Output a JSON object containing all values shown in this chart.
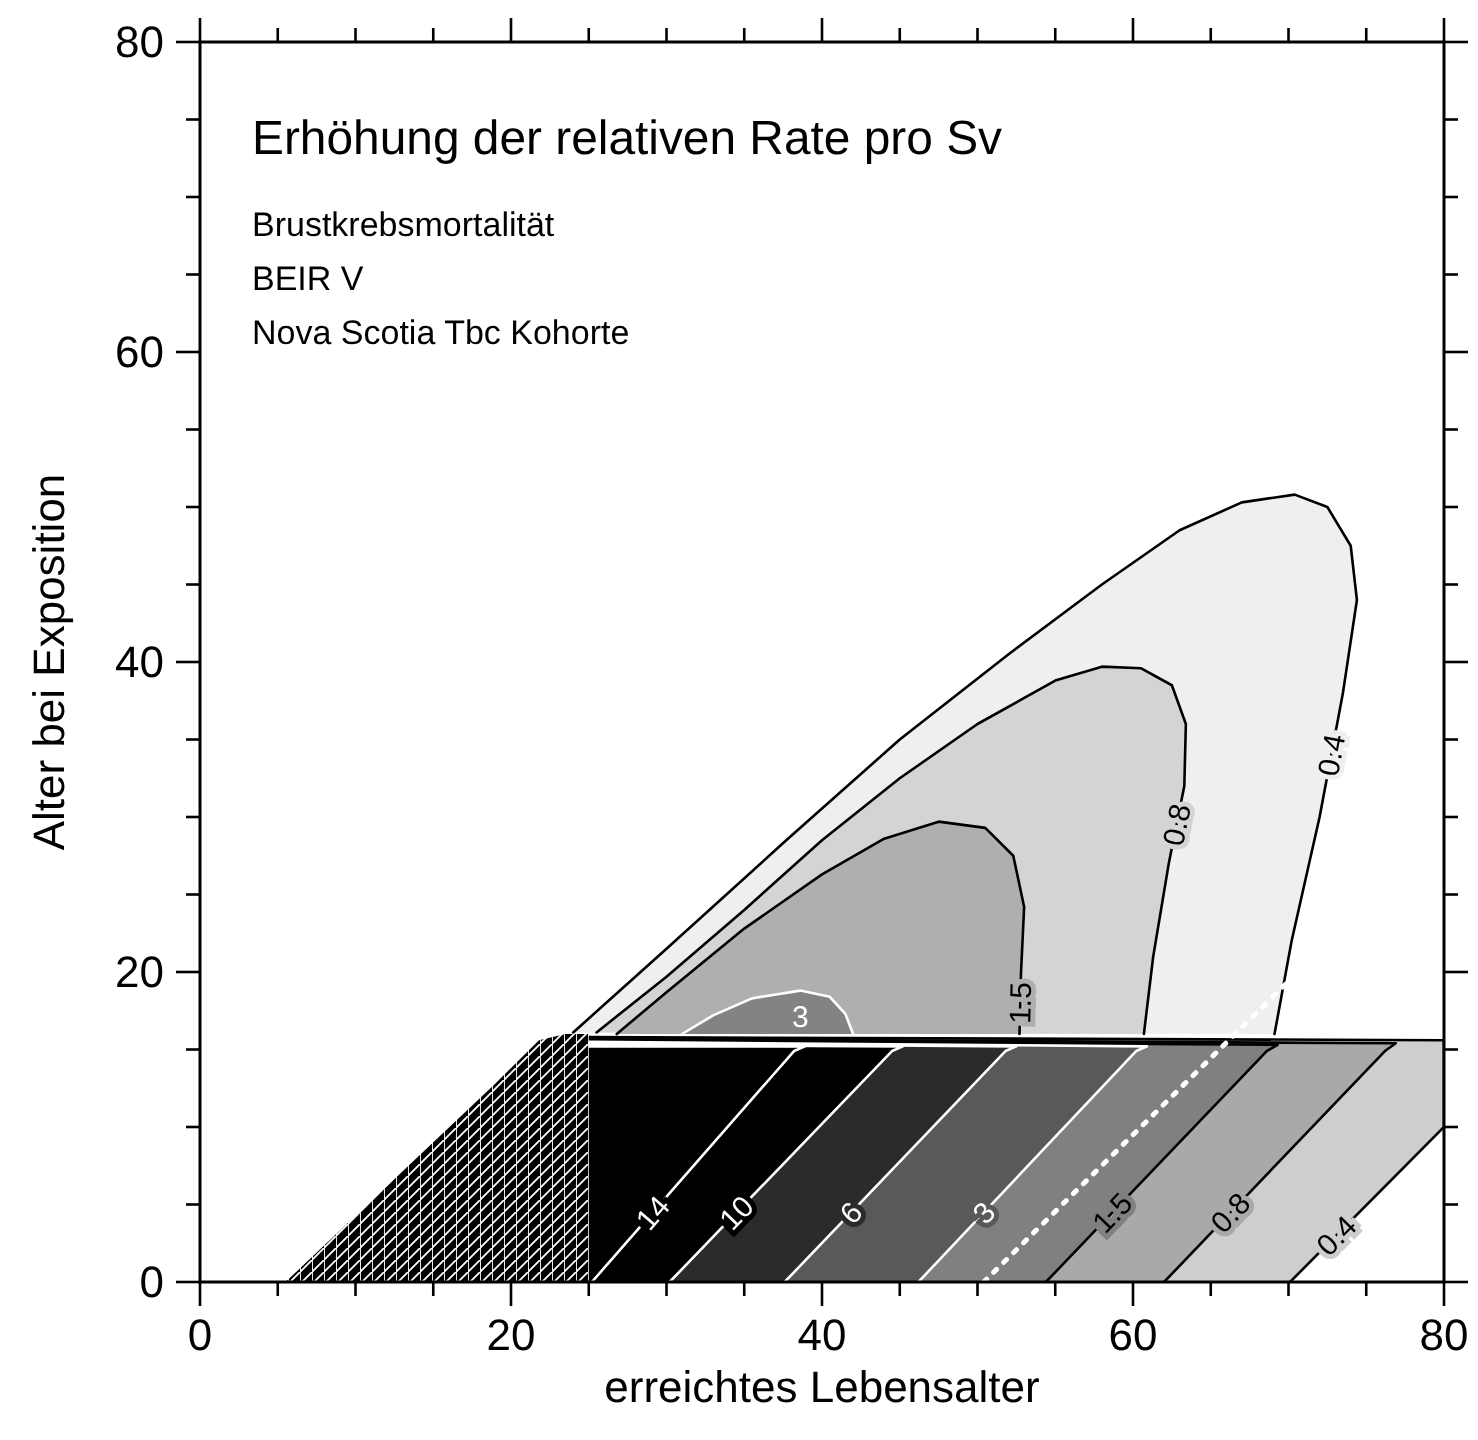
{
  "chart_data": {
    "type": "line",
    "title": "Erhöhung der relativen Rate pro Sv",
    "annotations": [
      "Brustkrebsmortalität",
      "BEIR V",
      "Nova Scotia Tbc Kohorte"
    ],
    "xlabel": "erreichtes Lebensalter",
    "ylabel": "Alter bei Exposition",
    "xlim": [
      0,
      80
    ],
    "ylim": [
      0,
      80
    ],
    "xticks": [
      0,
      {
        "value": 5,
        "label": null
      },
      {
        "value": 10,
        "label": null
      },
      {
        "value": 15,
        "label": null
      },
      20,
      {
        "value": 25,
        "label": null
      },
      {
        "value": 30,
        "label": null
      },
      {
        "value": 35,
        "label": null
      },
      40,
      {
        "value": 45,
        "label": null
      },
      {
        "value": 50,
        "label": null
      },
      {
        "value": 55,
        "label": null
      },
      60,
      {
        "value": 65,
        "label": null
      },
      {
        "value": 70,
        "label": null
      },
      {
        "value": 75,
        "label": null
      },
      80
    ],
    "yticks": [
      0,
      {
        "value": 5,
        "label": null
      },
      {
        "value": 10,
        "label": null
      },
      {
        "value": 15,
        "label": null
      },
      20,
      {
        "value": 25,
        "label": null
      },
      {
        "value": 30,
        "label": null
      },
      {
        "value": 35,
        "label": null
      },
      40,
      {
        "value": 45,
        "label": null
      },
      {
        "value": 50,
        "label": null
      },
      {
        "value": 55,
        "label": null
      },
      60,
      {
        "value": 65,
        "label": null
      },
      {
        "value": 70,
        "label": null
      },
      {
        "value": 75,
        "label": null
      },
      80
    ],
    "grid": false,
    "marker": "none",
    "series": [
      {
        "name": "0.4",
        "color": "#000000",
        "x": [
          24,
          30,
          37.7,
          45,
          52,
          58,
          63,
          67,
          70.4,
          72.5,
          74,
          74.4,
          73.5,
          72,
          70.2,
          69.1
        ],
        "values": [
          16.1,
          21.5,
          28.5,
          35,
          40.5,
          45,
          48.5,
          50.3,
          50.8,
          50,
          47.5,
          44,
          38,
          30,
          22,
          16
        ]
      },
      {
        "name": "0.8",
        "color": "#000000",
        "x": [
          25.5,
          30,
          35,
          40,
          45,
          50,
          55,
          58,
          60.5,
          62.5,
          63.4,
          63.3,
          62.3,
          61.3,
          60.7
        ],
        "values": [
          16.1,
          19.7,
          24,
          28.5,
          32.5,
          36,
          38.8,
          39.7,
          39.6,
          38.5,
          36,
          32,
          27,
          21,
          16
        ]
      },
      {
        "name": "1.5",
        "color": "#000000",
        "x": [
          26.8,
          30,
          35,
          40,
          44,
          47.5,
          50.5,
          52.3,
          53,
          52.8,
          52.7
        ],
        "values": [
          16,
          18.7,
          22.8,
          26.3,
          28.6,
          29.7,
          29.3,
          27.5,
          24.2,
          20,
          16
        ]
      },
      {
        "name": "3",
        "color": "#ffffff",
        "x": [
          31,
          33,
          35.5,
          38.6,
          40.5,
          41.5,
          42
        ],
        "values": [
          16,
          17.2,
          18.3,
          18.8,
          18.4,
          17.3,
          16
        ]
      },
      {
        "name": "0.4",
        "color": "#000000",
        "x": [
          70.1,
          80,
          80,
          25
        ],
        "values": [
          0,
          10,
          15.6,
          15.8
        ]
      },
      {
        "name": "0.8",
        "color": "#000000",
        "x": [
          62,
          76.2,
          76.9,
          25
        ],
        "values": [
          0,
          14.9,
          15.4,
          15.7
        ]
      },
      {
        "name": "1.5",
        "color": "#000000",
        "x": [
          54.4,
          68.6,
          69.3,
          25
        ],
        "values": [
          0,
          14.9,
          15.3,
          15.6
        ]
      },
      {
        "name": "3",
        "color": "#ffffff",
        "x": [
          46.2,
          60.2,
          60.9,
          25
        ],
        "values": [
          0,
          14.9,
          15.2,
          15.5
        ]
      },
      {
        "name": "6",
        "color": "#ffffff",
        "x": [
          37.6,
          51.8,
          52.5,
          25
        ],
        "values": [
          0,
          14.9,
          15.2,
          15.4
        ]
      },
      {
        "name": "10",
        "color": "#ffffff",
        "x": [
          30.2,
          44.5,
          45.2,
          25
        ],
        "values": [
          0,
          14.9,
          15.2,
          15.3
        ]
      },
      {
        "name": "14",
        "color": "#ffffff",
        "x": [
          25.2,
          38.2,
          38.9,
          25
        ],
        "values": [
          0,
          14.9,
          15.2,
          15.2
        ]
      },
      {
        "color": "#ffffff",
        "line_style": "dotted",
        "x": [
          50.4,
          79.5
        ],
        "values": [
          0,
          28.8
        ]
      }
    ]
  }
}
